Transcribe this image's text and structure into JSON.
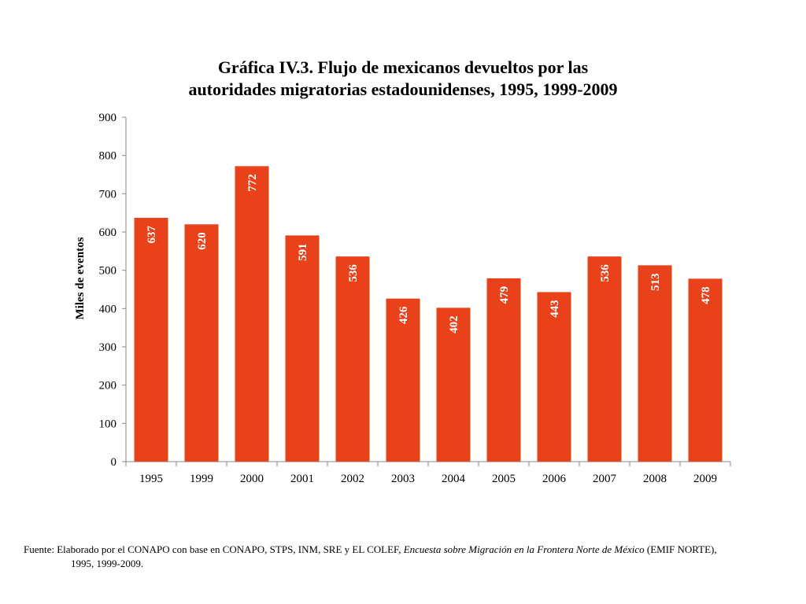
{
  "chart_data": {
    "type": "bar",
    "title_line1": "Gráfica IV.3. Flujo de mexicanos devueltos por las",
    "title_line2": "autoridades migratorias estadounidenses, 1995, 1999-2009",
    "xlabel": "",
    "ylabel": "Miles de eventos",
    "categories": [
      "1995",
      "1999",
      "2000",
      "2001",
      "2002",
      "2003",
      "2004",
      "2005",
      "2006",
      "2007",
      "2008",
      "2009"
    ],
    "values": [
      637,
      620,
      772,
      591,
      536,
      426,
      402,
      479,
      443,
      536,
      513,
      478
    ],
    "ylim": [
      0,
      900
    ],
    "yticks": [
      0,
      100,
      200,
      300,
      400,
      500,
      600,
      700,
      800,
      900
    ],
    "bar_color": "#E9411A",
    "label_color": "#ffffff",
    "grid": false
  },
  "source": {
    "prefix": "Fuente: Elaborado por el CONAPO con base en CONAPO, STPS, INM, SRE y EL COLEF, ",
    "survey": "Encuesta sobre Migración en la Frontera Norte de México",
    "suffix": " (EMIF NORTE),",
    "years": "1995, 1999-2009."
  }
}
